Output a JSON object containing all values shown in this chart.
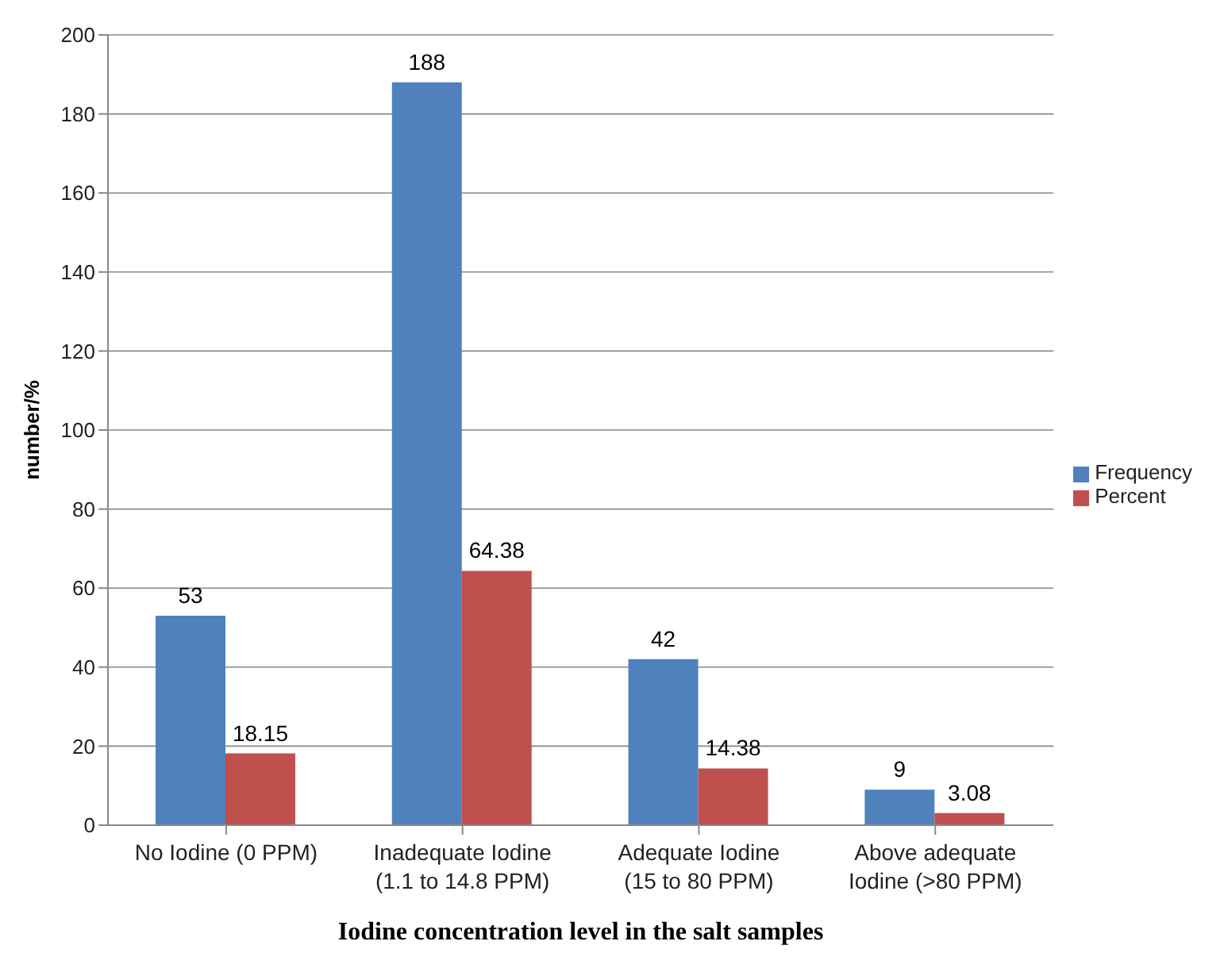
{
  "chart_data": {
    "type": "bar",
    "xlabel": "Iodine concentration level in the salt samples",
    "ylabel": "number/%",
    "categories": [
      "No Iodine (0 PPM)",
      "Inadequate Iodine (1.1 to 14.8 PPM)",
      "Adequate Iodine (15 to 80 PPM)",
      "Above adequate Iodine (>80 PPM)"
    ],
    "series": [
      {
        "name": "Frequency",
        "color": "#4f81bd",
        "values": [
          53,
          188,
          42,
          9
        ]
      },
      {
        "name": "Percent",
        "color": "#c0504d",
        "values": [
          18.15,
          64.38,
          14.38,
          3.08
        ]
      }
    ],
    "ylim": [
      0,
      200
    ],
    "yticks": [
      0,
      20,
      40,
      60,
      80,
      100,
      120,
      140,
      160,
      180,
      200
    ],
    "grid": "y",
    "legend": "right",
    "data_labels": true
  }
}
